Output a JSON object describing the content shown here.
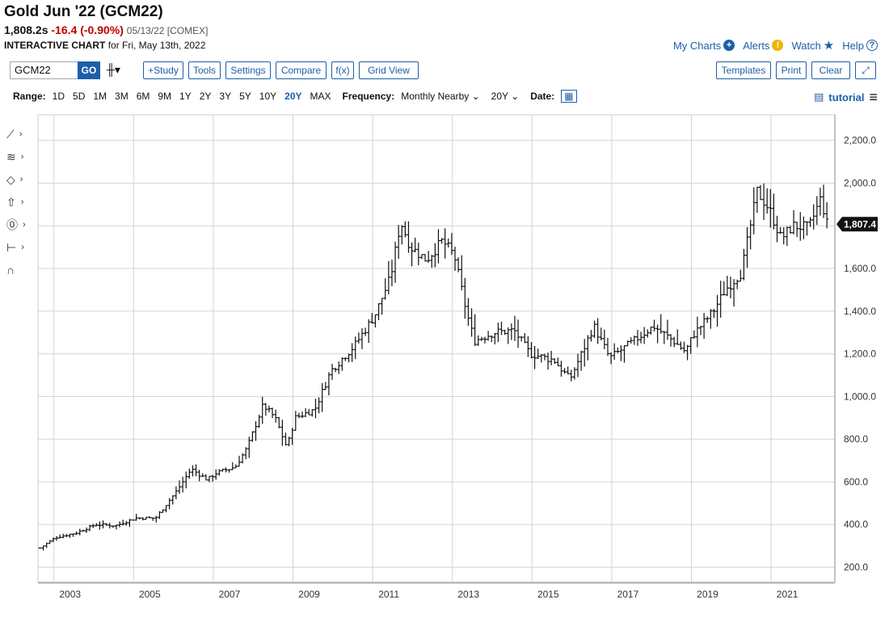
{
  "header": {
    "title": "Gold Jun '22 (GCM22)",
    "last": "1,808.2s",
    "change": "-16.4 (-0.90%)",
    "date_exchange": "05/13/22 [COMEX]",
    "subtitle_bold": "INTERACTIVE CHART",
    "subtitle_rest": "for Fri, May 13th, 2022"
  },
  "toplinks": {
    "my_charts": "My Charts",
    "alerts": "Alerts",
    "watch": "Watch",
    "help": "Help"
  },
  "toolbar": {
    "symbol_value": "GCM22",
    "go": "GO",
    "study": "+Study",
    "tools": "Tools",
    "settings": "Settings",
    "compare": "Compare",
    "fx": "f(x)",
    "grid_view": "Grid View",
    "templates": "Templates",
    "print": "Print",
    "clear": "Clear"
  },
  "rangebar": {
    "range_label": "Range:",
    "ranges": [
      "1D",
      "5D",
      "1M",
      "3M",
      "6M",
      "9M",
      "1Y",
      "2Y",
      "3Y",
      "5Y",
      "10Y",
      "20Y",
      "MAX"
    ],
    "active_range": "20Y",
    "frequency_label": "Frequency:",
    "frequency_value": "Monthly Nearby",
    "period_value": "20Y",
    "date_label": "Date:",
    "tutorial": "tutorial"
  },
  "colors": {
    "accent": "#1d5fa8",
    "down": "#c00000",
    "bars": "#111111"
  },
  "chart_data": {
    "type": "ohlc",
    "x_ticks": [
      "2003",
      "2005",
      "2007",
      "2009",
      "2011",
      "2013",
      "2015",
      "2017",
      "2019",
      "2021"
    ],
    "y_ticks": [
      "200.0",
      "400.0",
      "600.0",
      "800.0",
      "1,000.0",
      "1,200.0",
      "1,400.0",
      "1,600.0",
      "1,800.0",
      "2,000.0",
      "2,200.0"
    ],
    "ylim": [
      130,
      2320
    ],
    "xlim": [
      2002.55,
      2022.55
    ],
    "last_price_label": "1,807.4",
    "last_price": 1807.4,
    "series_anchors": [
      [
        2002.6,
        290
      ],
      [
        2003.0,
        340
      ],
      [
        2003.5,
        360
      ],
      [
        2004.0,
        400
      ],
      [
        2004.5,
        395
      ],
      [
        2005.0,
        430
      ],
      [
        2005.5,
        430
      ],
      [
        2006.0,
        550
      ],
      [
        2006.4,
        660
      ],
      [
        2006.8,
        610
      ],
      [
        2007.0,
        640
      ],
      [
        2007.5,
        670
      ],
      [
        2007.8,
        760
      ],
      [
        2008.2,
        960
      ],
      [
        2008.5,
        900
      ],
      [
        2008.8,
        760
      ],
      [
        2009.0,
        900
      ],
      [
        2009.5,
        940
      ],
      [
        2009.9,
        1120
      ],
      [
        2010.5,
        1240
      ],
      [
        2011.0,
        1380
      ],
      [
        2011.4,
        1560
      ],
      [
        2011.65,
        1820
      ],
      [
        2011.9,
        1700
      ],
      [
        2012.3,
        1640
      ],
      [
        2012.7,
        1730
      ],
      [
        2013.0,
        1660
      ],
      [
        2013.3,
        1400
      ],
      [
        2013.5,
        1260
      ],
      [
        2014.0,
        1300
      ],
      [
        2014.5,
        1310
      ],
      [
        2014.9,
        1200
      ],
      [
        2015.5,
        1170
      ],
      [
        2015.9,
        1080
      ],
      [
        2016.5,
        1330
      ],
      [
        2016.9,
        1180
      ],
      [
        2017.5,
        1260
      ],
      [
        2018.0,
        1330
      ],
      [
        2018.5,
        1260
      ],
      [
        2018.8,
        1210
      ],
      [
        2019.0,
        1290
      ],
      [
        2019.5,
        1400
      ],
      [
        2019.8,
        1500
      ],
      [
        2020.2,
        1580
      ],
      [
        2020.6,
        1960
      ],
      [
        2020.9,
        1880
      ],
      [
        2021.2,
        1740
      ],
      [
        2021.5,
        1800
      ],
      [
        2021.9,
        1790
      ],
      [
        2022.2,
        1930
      ],
      [
        2022.35,
        1810
      ]
    ]
  }
}
